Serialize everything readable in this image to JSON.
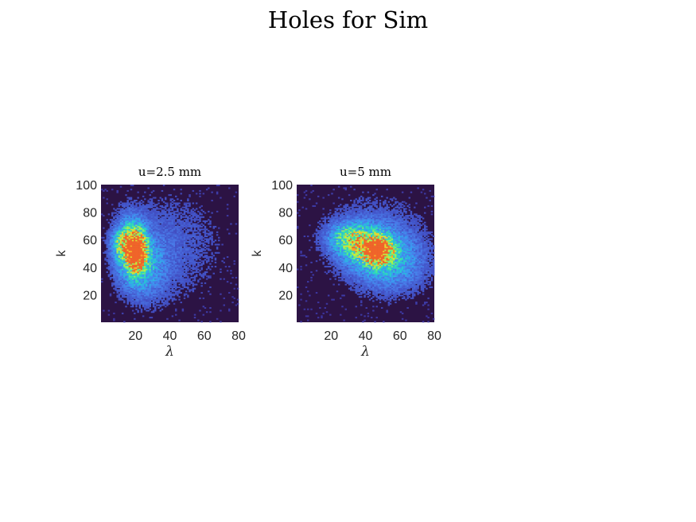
{
  "figure": {
    "title": "Holes for Sim"
  },
  "colors": {
    "background": "#2c1344",
    "colormap": [
      "#2c1344",
      "#3a2a8e",
      "#4354c9",
      "#4a7ae8",
      "#3a9cf1",
      "#26c4d8",
      "#35dfae",
      "#7ff06f",
      "#c8ef3a",
      "#f8c92b",
      "#f0652a"
    ]
  },
  "chart_data": [
    {
      "type": "heatmap",
      "title": "u=2.5 mm",
      "xlabel": "λ",
      "ylabel": "k",
      "xlim": [
        0,
        80
      ],
      "ylim": [
        0,
        100
      ],
      "xticks": [
        20,
        40,
        60,
        80
      ],
      "yticks": [
        20,
        40,
        60,
        80,
        100
      ],
      "grid": false,
      "bins": {
        "nx": 80,
        "ny": 100
      },
      "blobs": [
        {
          "x": 21,
          "y": 52,
          "sx": 3.5,
          "sy": 9,
          "peak": 1.0
        },
        {
          "x": 17,
          "y": 55,
          "sx": 6,
          "sy": 14,
          "peak": 0.55
        },
        {
          "x": 13,
          "y": 57,
          "sx": 4,
          "sy": 6,
          "peak": 0.45
        },
        {
          "x": 25,
          "y": 40,
          "sx": 9,
          "sy": 16,
          "peak": 0.28
        },
        {
          "x": 40,
          "y": 55,
          "sx": 22,
          "sy": 28,
          "peak": 0.12
        }
      ]
    },
    {
      "type": "heatmap",
      "title": "u=5 mm",
      "xlabel": "λ",
      "ylabel": "k",
      "xlim": [
        0,
        80
      ],
      "ylim": [
        0,
        100
      ],
      "xticks": [
        20,
        40,
        60,
        80
      ],
      "yticks": [
        20,
        40,
        60,
        80,
        100
      ],
      "grid": false,
      "bins": {
        "nx": 80,
        "ny": 100
      },
      "blobs": [
        {
          "x": 47,
          "y": 52,
          "sx": 5,
          "sy": 6,
          "peak": 1.0
        },
        {
          "x": 42,
          "y": 55,
          "sx": 11,
          "sy": 10,
          "peak": 0.5
        },
        {
          "x": 30,
          "y": 62,
          "sx": 8,
          "sy": 7,
          "peak": 0.4
        },
        {
          "x": 55,
          "y": 42,
          "sx": 14,
          "sy": 14,
          "peak": 0.28
        },
        {
          "x": 45,
          "y": 62,
          "sx": 22,
          "sy": 24,
          "peak": 0.12
        }
      ]
    }
  ]
}
